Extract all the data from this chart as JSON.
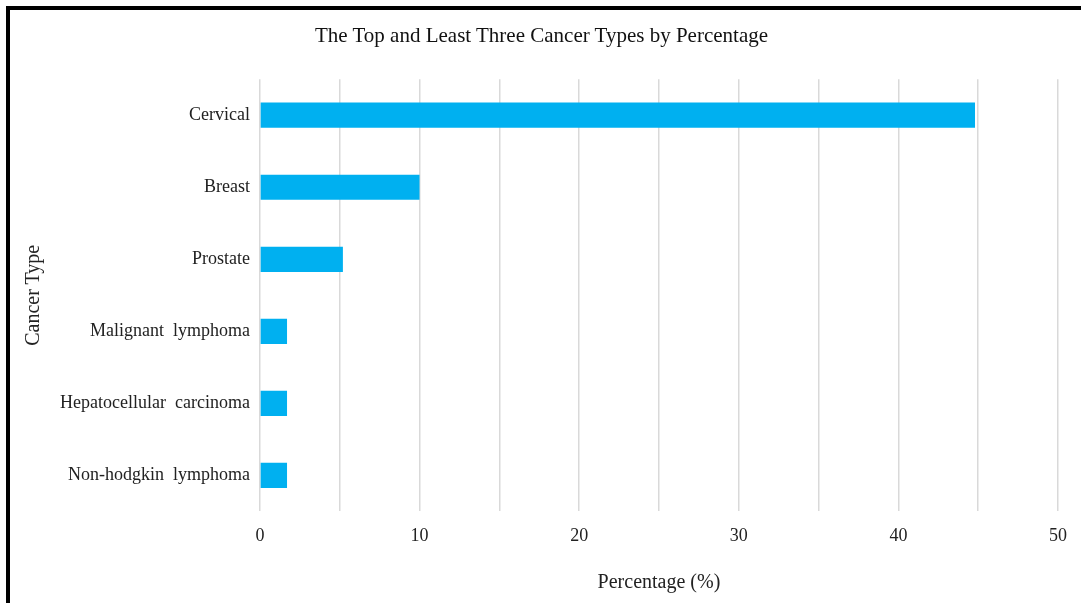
{
  "chart_data": {
    "type": "bar",
    "orientation": "horizontal",
    "title": "The Top and Least Three Cancer Types by Percentage",
    "xlabel": "Percentage (%)",
    "ylabel": "Cancer Type",
    "categories": [
      "Cervical",
      "Breast",
      "Prostate",
      "Malignant  lymphoma",
      "Hepatocellular  carcinoma",
      "Non-hodgkin  lymphoma"
    ],
    "values": [
      44.8,
      10.0,
      5.2,
      1.7,
      1.7,
      1.7
    ],
    "color": "#00b0f0",
    "xlim": [
      0,
      50
    ],
    "xticks": [
      0,
      {
        "value": 5,
        "label": null
      },
      10,
      {
        "value": 15,
        "label": null
      },
      20,
      {
        "value": 25,
        "label": null
      },
      30,
      {
        "value": 35,
        "label": null
      },
      40,
      {
        "value": 45,
        "label": null
      },
      50
    ],
    "grid": "x"
  }
}
